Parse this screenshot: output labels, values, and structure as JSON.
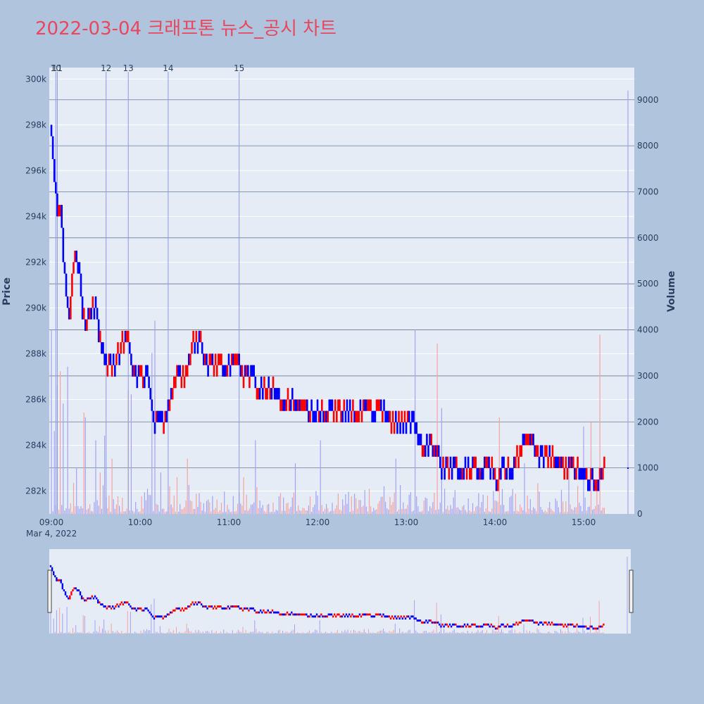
{
  "title": "2022-03-04 크래프톤 뉴스_공시 차트",
  "colors": {
    "page_bg": "#b0c4de",
    "plot_bg": "#e5ecf6",
    "up": "#ff0000",
    "down": "#0000ff",
    "vol_up": "#f4a3a3",
    "vol_down": "#a3a3f4",
    "title": "#e8475e",
    "vol_grid": "#6b7a99",
    "news_line": "#8c9ae6"
  },
  "chart_data": {
    "type": "candlestick",
    "xlabel": "",
    "ylabel": "Price",
    "y2label": "Volume",
    "date_label": "Mar 4, 2022",
    "x_ticks": [
      "09:00",
      "10:00",
      "11:00",
      "12:00",
      "13:00",
      "14:00",
      "15:00"
    ],
    "x_range": [
      "09:00",
      "15:30"
    ],
    "price_ticks": [
      "282k",
      "284k",
      "286k",
      "288k",
      "290k",
      "292k",
      "294k",
      "296k",
      "298k",
      "300k"
    ],
    "price_tick_values": [
      282000,
      284000,
      286000,
      288000,
      290000,
      292000,
      294000,
      296000,
      298000,
      300000
    ],
    "ylim": [
      281000,
      300500
    ],
    "volume_ticks": [
      "0",
      "1000",
      "2000",
      "3000",
      "4000",
      "5000",
      "6000",
      "7000",
      "8000",
      "9000"
    ],
    "volume_tick_values": [
      0,
      1000,
      2000,
      3000,
      4000,
      5000,
      6000,
      7000,
      8000,
      9000
    ],
    "y2lim": [
      0,
      9700
    ],
    "news": [
      {
        "label": "10",
        "time": "09:03"
      },
      {
        "label": "11",
        "time": "09:04"
      },
      {
        "label": "12",
        "time": "09:37"
      },
      {
        "label": "13",
        "time": "09:52"
      },
      {
        "label": "14",
        "time": "10:19"
      },
      {
        "label": "15",
        "time": "11:07"
      }
    ],
    "price_path": [
      [
        "09:00",
        297500
      ],
      [
        "09:02",
        295500
      ],
      [
        "09:04",
        294000
      ],
      [
        "09:06",
        294500
      ],
      [
        "09:08",
        292000
      ],
      [
        "09:10",
        290500
      ],
      [
        "09:12",
        289500
      ],
      [
        "09:14",
        291500
      ],
      [
        "09:16",
        292000
      ],
      [
        "09:19",
        291500
      ],
      [
        "09:21",
        289500
      ],
      [
        "09:23",
        289000
      ],
      [
        "09:26",
        290000
      ],
      [
        "09:30",
        290000
      ],
      [
        "09:32",
        288500
      ],
      [
        "09:35",
        288000
      ],
      [
        "09:38",
        287500
      ],
      [
        "09:42",
        287500
      ],
      [
        "09:45",
        288000
      ],
      [
        "09:48",
        288500
      ],
      [
        "09:52",
        288500
      ],
      [
        "09:55",
        287000
      ],
      [
        "10:00",
        287000
      ],
      [
        "10:05",
        287000
      ],
      [
        "10:07",
        286000
      ],
      [
        "10:09",
        285000
      ],
      [
        "10:12",
        285500
      ],
      [
        "10:15",
        285000
      ],
      [
        "10:18",
        285500
      ],
      [
        "10:21",
        286000
      ],
      [
        "10:24",
        287000
      ],
      [
        "10:30",
        287000
      ],
      [
        "10:33",
        287500
      ],
      [
        "10:35",
        288500
      ],
      [
        "10:40",
        288500
      ],
      [
        "10:43",
        288000
      ],
      [
        "10:46",
        287500
      ],
      [
        "10:55",
        287500
      ],
      [
        "11:00",
        287500
      ],
      [
        "11:05",
        287500
      ],
      [
        "11:09",
        287000
      ],
      [
        "11:15",
        287000
      ],
      [
        "11:20",
        286500
      ],
      [
        "11:28",
        286500
      ],
      [
        "11:33",
        286000
      ],
      [
        "11:45",
        286000
      ],
      [
        "11:50",
        285500
      ],
      [
        "12:00",
        285500
      ],
      [
        "12:20",
        285500
      ],
      [
        "12:45",
        285500
      ],
      [
        "12:48",
        285000
      ],
      [
        "12:55",
        285000
      ],
      [
        "13:05",
        285000
      ],
      [
        "13:08",
        284000
      ],
      [
        "13:15",
        284000
      ],
      [
        "13:21",
        284000
      ],
      [
        "13:23",
        283000
      ],
      [
        "13:35",
        283000
      ],
      [
        "13:50",
        283000
      ],
      [
        "13:57",
        283000
      ],
      [
        "13:59",
        282500
      ],
      [
        "14:02",
        282500
      ],
      [
        "14:04",
        283000
      ],
      [
        "14:12",
        283000
      ],
      [
        "14:15",
        283500
      ],
      [
        "14:18",
        284000
      ],
      [
        "14:25",
        284000
      ],
      [
        "14:28",
        283500
      ],
      [
        "14:33",
        283500
      ],
      [
        "14:40",
        283500
      ],
      [
        "14:43",
        283000
      ],
      [
        "14:50",
        283000
      ],
      [
        "14:55",
        283000
      ],
      [
        "14:58",
        282500
      ],
      [
        "15:05",
        282500
      ],
      [
        "15:08",
        282000
      ],
      [
        "15:10",
        282500
      ],
      [
        "15:12",
        283000
      ],
      [
        "15:14",
        283000
      ]
    ],
    "volume_spikes": [
      [
        "09:00",
        4000
      ],
      [
        "09:02",
        1800
      ],
      [
        "09:04",
        2800
      ],
      [
        "09:06",
        3100
      ],
      [
        "09:08",
        2400
      ],
      [
        "09:11",
        3200
      ],
      [
        "09:17",
        1000
      ],
      [
        "09:22",
        2200
      ],
      [
        "09:23",
        2100
      ],
      [
        "09:30",
        1600
      ],
      [
        "09:33",
        900
      ],
      [
        "09:36",
        1700
      ],
      [
        "09:41",
        1200
      ],
      [
        "09:52",
        2700
      ],
      [
        "09:54",
        2600
      ],
      [
        "10:08",
        3500
      ],
      [
        "10:10",
        4200
      ],
      [
        "10:14",
        900
      ],
      [
        "10:20",
        600
      ],
      [
        "10:25",
        800
      ],
      [
        "10:32",
        1200
      ],
      [
        "11:10",
        800
      ],
      [
        "11:18",
        1600
      ],
      [
        "11:45",
        1100
      ],
      [
        "12:02",
        1600
      ],
      [
        "12:45",
        600
      ],
      [
        "12:53",
        1200
      ],
      [
        "13:06",
        4000
      ],
      [
        "13:21",
        3700
      ],
      [
        "13:24",
        2300
      ],
      [
        "14:03",
        2100
      ],
      [
        "14:20",
        1100
      ],
      [
        "14:50",
        1000
      ],
      [
        "15:00",
        1900
      ],
      [
        "15:05",
        2000
      ],
      [
        "15:11",
        3900
      ],
      [
        "15:30",
        9200
      ]
    ]
  }
}
